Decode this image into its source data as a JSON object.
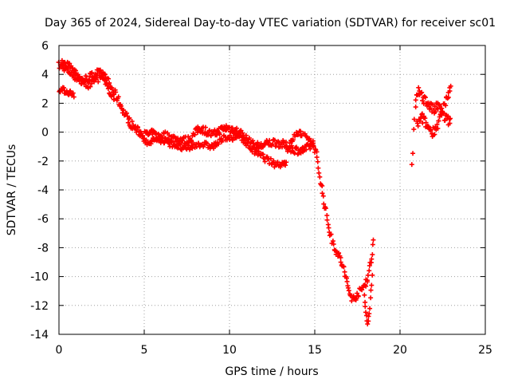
{
  "chart_data": {
    "type": "scatter",
    "title": "Day 365 of 2024, Sidereal Day-to-day VTEC variation (SDTVAR) for receiver sc01",
    "xlabel": "GPS time / hours",
    "ylabel": "SDTVAR / TECUs",
    "xlim": [
      0,
      25
    ],
    "ylim": [
      -14,
      6
    ],
    "xticks": [
      0,
      5,
      10,
      15,
      20,
      25
    ],
    "yticks": [
      -14,
      -12,
      -10,
      -8,
      -6,
      -4,
      -2,
      0,
      2,
      4,
      6
    ],
    "grid": true,
    "marker": "plus",
    "series": [
      {
        "name": "SDTVAR",
        "color": "#ff0000",
        "tracks": [
          {
            "points": [
              [
                0,
                4.6
              ],
              [
                0.3,
                4.5
              ],
              [
                0.6,
                4.2
              ],
              [
                1.0,
                3.8
              ],
              [
                1.4,
                3.6
              ],
              [
                1.8,
                3.8
              ],
              [
                2.2,
                4.1
              ],
              [
                2.6,
                4.0
              ],
              [
                3.0,
                3.2
              ],
              [
                3.4,
                2.4
              ],
              [
                3.8,
                1.4
              ],
              [
                4.2,
                0.6
              ],
              [
                4.6,
                0.1
              ],
              [
                5.0,
                -0.2
              ],
              [
                5.4,
                -0.1
              ],
              [
                5.8,
                -0.3
              ],
              [
                6.2,
                -0.2
              ],
              [
                6.6,
                -0.4
              ],
              [
                7.0,
                -0.5
              ],
              [
                7.4,
                -0.6
              ],
              [
                7.8,
                -0.4
              ],
              [
                8.2,
                0.3
              ],
              [
                8.6,
                0.1
              ],
              [
                9.0,
                -0.2
              ],
              [
                9.4,
                0.1
              ],
              [
                9.8,
                0.3
              ],
              [
                10.2,
                0.2
              ],
              [
                10.6,
                0.0
              ],
              [
                11.0,
                -0.5
              ],
              [
                11.4,
                -0.9
              ],
              [
                11.8,
                -1.0
              ],
              [
                12.2,
                -0.8
              ],
              [
                12.6,
                -0.7
              ],
              [
                13.0,
                -0.8
              ],
              [
                13.4,
                -1.0
              ],
              [
                13.8,
                -1.2
              ],
              [
                14.2,
                -1.3
              ],
              [
                14.6,
                -1.1
              ],
              [
                14.9,
                -0.8
              ],
              [
                15.1,
                -1.6
              ],
              [
                15.3,
                -3.0
              ],
              [
                15.5,
                -4.5
              ],
              [
                15.7,
                -5.8
              ],
              [
                15.9,
                -7.0
              ],
              [
                16.1,
                -7.8
              ],
              [
                16.3,
                -8.3
              ],
              [
                16.5,
                -8.8
              ],
              [
                16.7,
                -9.5
              ],
              [
                16.9,
                -10.5
              ],
              [
                17.1,
                -11.3
              ],
              [
                17.3,
                -11.6
              ],
              [
                17.5,
                -11.2
              ],
              [
                17.7,
                -11.0
              ],
              [
                17.9,
                -10.6
              ],
              [
                18.1,
                -10.1
              ],
              [
                18.3,
                -9.0
              ],
              [
                18.45,
                -7.5
              ],
              [
                18.5,
                -6.6
              ]
            ],
            "spread": 0.28,
            "step": 0.04
          },
          {
            "points": [
              [
                0,
                3.0
              ],
              [
                0.5,
                2.8
              ],
              [
                0.9,
                2.6
              ]
            ],
            "spread": 0.2,
            "step": 0.04
          },
          {
            "points": [
              [
                0.2,
                4.8
              ],
              [
                0.6,
                4.6
              ],
              [
                1.0,
                4.1
              ],
              [
                1.3,
                3.5
              ],
              [
                1.7,
                3.2
              ],
              [
                2.1,
                3.6
              ],
              [
                2.5,
                3.8
              ],
              [
                2.9,
                3.0
              ],
              [
                3.3,
                2.2
              ]
            ],
            "spread": 0.22,
            "step": 0.05
          },
          {
            "points": [
              [
                5.0,
                -0.8
              ],
              [
                5.4,
                -0.6
              ],
              [
                5.8,
                -0.5
              ],
              [
                6.2,
                -0.7
              ],
              [
                6.6,
                -0.8
              ],
              [
                7.0,
                -1.0
              ],
              [
                7.4,
                -1.2
              ],
              [
                7.8,
                -1.0
              ],
              [
                8.2,
                -0.8
              ],
              [
                8.6,
                -0.9
              ],
              [
                9.0,
                -1.0
              ],
              [
                9.4,
                -0.7
              ],
              [
                9.8,
                -0.3
              ],
              [
                10.2,
                -0.5
              ],
              [
                10.6,
                -0.2
              ],
              [
                11.0,
                -0.8
              ],
              [
                11.4,
                -1.3
              ],
              [
                11.8,
                -1.6
              ],
              [
                12.2,
                -1.9
              ],
              [
                12.6,
                -2.2
              ],
              [
                13.0,
                -2.2
              ],
              [
                13.4,
                -2.1
              ]
            ],
            "spread": 0.22,
            "step": 0.05
          },
          {
            "points": [
              [
                13.4,
                -1.2
              ],
              [
                13.8,
                -0.3
              ],
              [
                14.1,
                0.0
              ],
              [
                14.4,
                -0.3
              ],
              [
                14.8,
                -0.5
              ],
              [
                15.0,
                -1.0
              ]
            ],
            "spread": 0.2,
            "step": 0.05
          },
          {
            "points": [
              [
                17.9,
                -11.4
              ],
              [
                18.0,
                -12.4
              ],
              [
                18.1,
                -13.3
              ],
              [
                18.2,
                -12.6
              ],
              [
                18.3,
                -11.0
              ],
              [
                18.4,
                -9.5
              ]
            ],
            "spread": 0.15,
            "step": 0.03
          },
          {
            "points": [
              [
                20.7,
                -2.4
              ],
              [
                20.75,
                -1.5
              ],
              [
                20.8,
                0.0
              ],
              [
                20.9,
                1.5
              ],
              [
                21.0,
                2.7
              ],
              [
                21.2,
                2.8
              ],
              [
                21.4,
                2.3
              ],
              [
                21.6,
                2.0
              ],
              [
                21.8,
                1.7
              ],
              [
                22.0,
                1.5
              ],
              [
                22.2,
                1.8
              ],
              [
                22.4,
                1.5
              ],
              [
                22.6,
                1.0
              ],
              [
                22.8,
                0.8
              ],
              [
                23.0,
                0.7
              ]
            ],
            "spread": 0.35,
            "step": 0.04
          },
          {
            "points": [
              [
                21.0,
                0.5
              ],
              [
                21.3,
                1.0
              ],
              [
                21.6,
                0.4
              ],
              [
                21.9,
                0.0
              ],
              [
                22.2,
                0.5
              ],
              [
                22.5,
                1.5
              ],
              [
                22.7,
                2.1
              ],
              [
                22.9,
                2.8
              ],
              [
                23.0,
                3.3
              ]
            ],
            "spread": 0.35,
            "step": 0.04
          }
        ]
      }
    ]
  }
}
